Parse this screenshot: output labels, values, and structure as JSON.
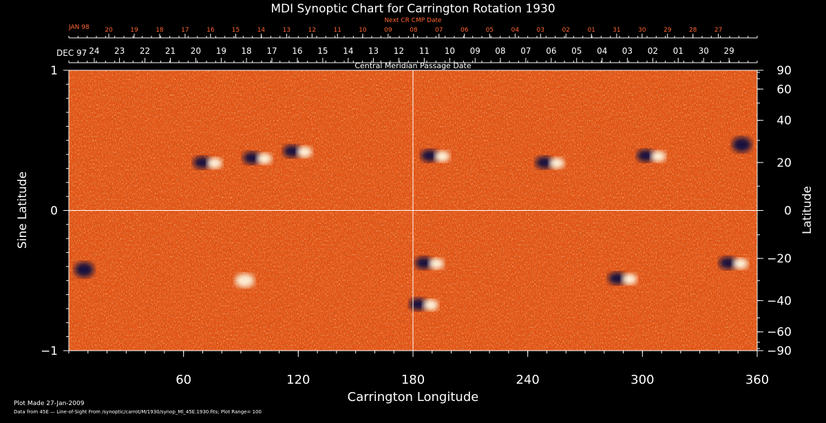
{
  "chart_data": {
    "type": "heatmap",
    "title": "MDI Synoptic Chart for Carrington Rotation 1930",
    "xlabel": "Carrington Longitude",
    "ylabel_left": "Sine Latitude",
    "ylabel_right": "Latitude",
    "xlim": [
      0,
      360
    ],
    "ylim": [
      -1,
      1
    ],
    "x_ticks": [
      60,
      120,
      180,
      240,
      300,
      360
    ],
    "y_ticks_left": [
      -1,
      0,
      1
    ],
    "y_ticks_left_labels": [
      "−1",
      "0",
      "1"
    ],
    "y_ticks_right_deg": [
      90,
      60,
      40,
      20,
      0,
      -20,
      -40,
      -60,
      -90
    ],
    "y_ticks_right_labels": [
      "90",
      "60",
      "40",
      "20",
      "0",
      "−20",
      "−40",
      "−60",
      "−90"
    ],
    "top_axis": {
      "label": "Central Meridian Passage Date",
      "month_label": "DEC 97",
      "dates": [
        "24",
        "23",
        "22",
        "21",
        "20",
        "19",
        "18",
        "17",
        "16",
        "15",
        "14",
        "13",
        "12",
        "11",
        "10",
        "09",
        "08",
        "07",
        "06",
        "05",
        "04",
        "03",
        "02",
        "01",
        "30",
        "29"
      ],
      "date_longitudes": [
        13.3,
        26.5,
        39.8,
        53.1,
        66.4,
        79.7,
        92.9,
        106.2,
        119.5,
        132.8,
        146.1,
        159.3,
        172.6,
        185.9,
        199.2,
        212.5,
        225.7,
        239.0,
        252.3,
        265.6,
        278.9,
        292.1,
        305.4,
        318.7,
        332.0,
        345.3
      ]
    },
    "next_cr_axis": {
      "label": "Next CR CMP Date",
      "month_label": "JAN 98",
      "dates": [
        "20",
        "19",
        "18",
        "17",
        "16",
        "15",
        "14",
        "13",
        "12",
        "11",
        "10",
        "09",
        "08",
        "07",
        "06",
        "05",
        "04",
        "03",
        "02",
        "01",
        "31",
        "30",
        "29",
        "28",
        "27"
      ],
      "date_longitudes": [
        20.9,
        34.2,
        47.5,
        60.8,
        74.1,
        87.3,
        100.6,
        113.9,
        127.2,
        140.5,
        153.7,
        167.0,
        180.3,
        193.6,
        206.9,
        220.1,
        233.4,
        246.7,
        260.0,
        273.3,
        286.5,
        299.8,
        313.1,
        326.4,
        339.7
      ]
    },
    "colorbar": {
      "range": 100,
      "negative_color": "#0a1040",
      "zero_color": "#e25516",
      "positive_color": "#fffbe6"
    },
    "active_regions": [
      {
        "lon": 73,
        "lat": 20,
        "polarity": "bipolar"
      },
      {
        "lon": 99,
        "lat": 22,
        "polarity": "bipolar"
      },
      {
        "lon": 120,
        "lat": 25,
        "polarity": "bipolar"
      },
      {
        "lon": 192,
        "lat": 23,
        "polarity": "bipolar"
      },
      {
        "lon": 252,
        "lat": 20,
        "polarity": "bipolar"
      },
      {
        "lon": 305,
        "lat": 23,
        "polarity": "bipolar"
      },
      {
        "lon": 352,
        "lat": 28,
        "polarity": "negative"
      },
      {
        "lon": 8,
        "lat": -25,
        "polarity": "negative"
      },
      {
        "lon": 92,
        "lat": -30,
        "polarity": "positive"
      },
      {
        "lon": 189,
        "lat": -22,
        "polarity": "bipolar"
      },
      {
        "lon": 186,
        "lat": -42,
        "polarity": "bipolar"
      },
      {
        "lon": 290,
        "lat": -29,
        "polarity": "bipolar"
      },
      {
        "lon": 348,
        "lat": -22,
        "polarity": "bipolar"
      }
    ]
  },
  "footer": {
    "plot_made": "Plot Made 27-Jan-2009",
    "data_source": "Data from 45E — Line-of-Sight From /synoptic/carrot/M/1930/synop_Ml_45E.1930.fits; Plot Range= 100"
  }
}
